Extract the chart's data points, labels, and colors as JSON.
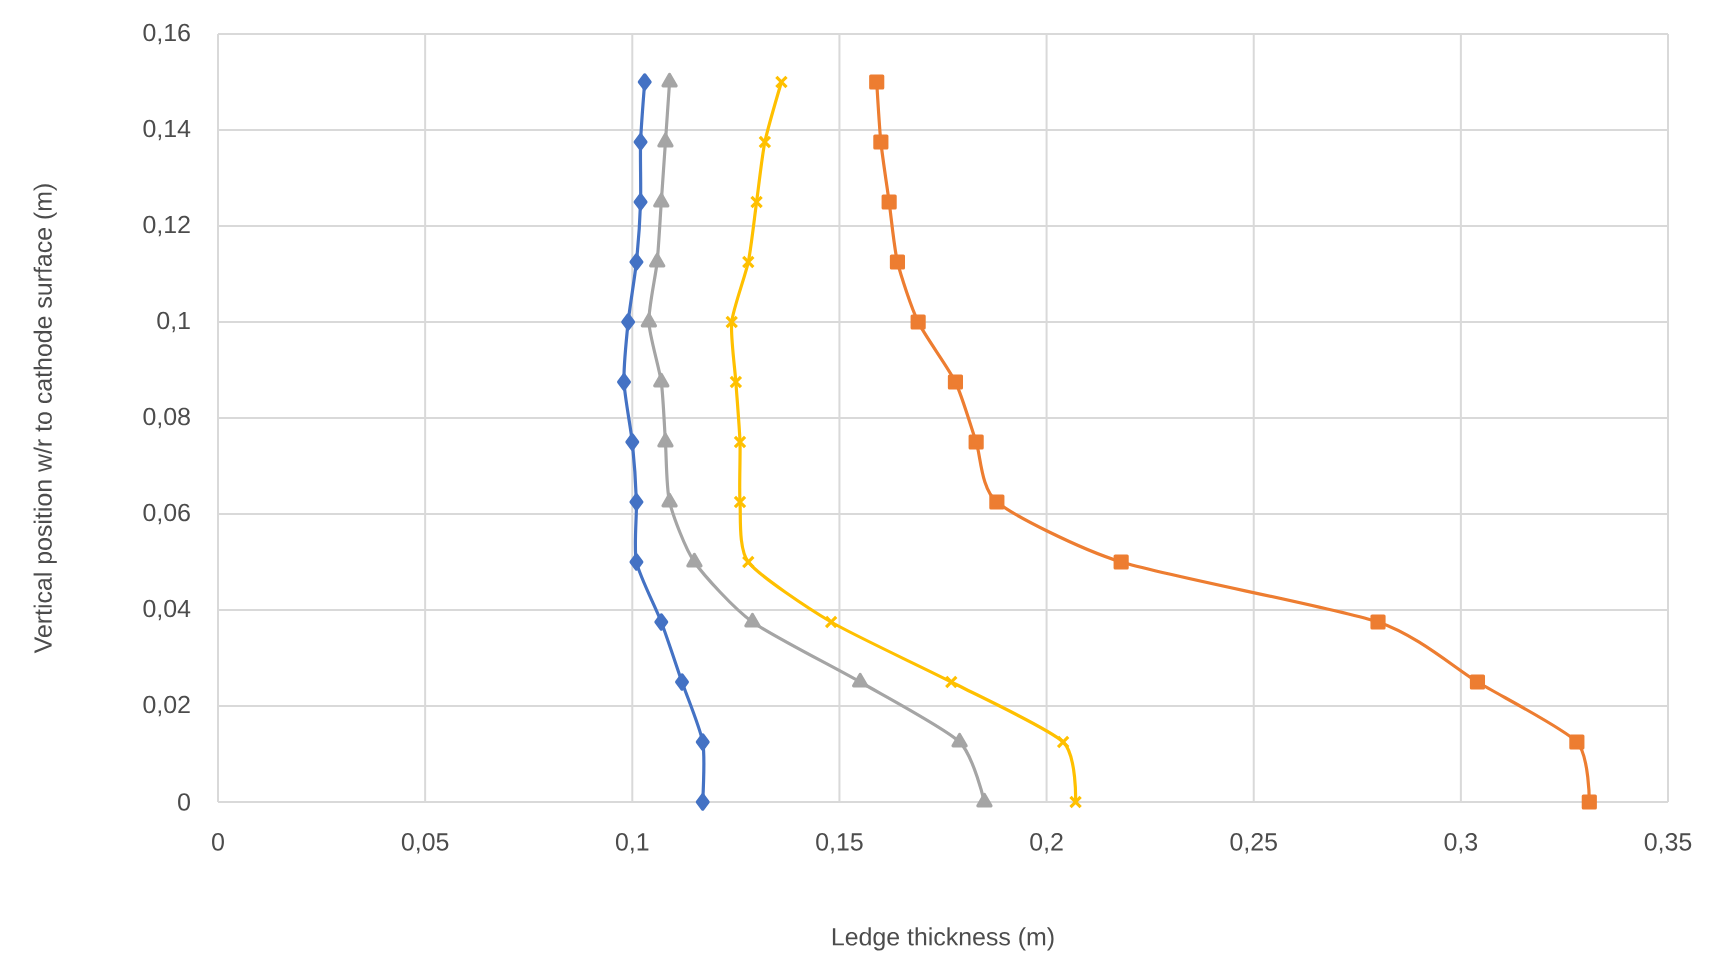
{
  "chart_data": {
    "type": "line",
    "xlabel": "Ledge thickness (m)",
    "ylabel": "Vertical position w/r to cathode surface (m)",
    "xlim": [
      0,
      0.35
    ],
    "ylim": [
      0,
      0.16
    ],
    "xticks": [
      0,
      {
        "value": 0.05,
        "label": "0,05"
      },
      {
        "value": 0.1,
        "label": "0,1"
      },
      {
        "value": 0.15,
        "label": "0,15"
      },
      {
        "value": 0.2,
        "label": "0,2"
      },
      {
        "value": 0.25,
        "label": "0,25"
      },
      {
        "value": 0.3,
        "label": "0,3"
      },
      {
        "value": 0.35,
        "label": "0,35"
      }
    ],
    "yticks": [
      0,
      {
        "value": 0.02,
        "label": "0,02"
      },
      {
        "value": 0.04,
        "label": "0,04"
      },
      {
        "value": 0.06,
        "label": "0,06"
      },
      {
        "value": 0.08,
        "label": "0,08"
      },
      {
        "value": 0.1,
        "label": "0,1"
      },
      {
        "value": 0.12,
        "label": "0,12"
      },
      {
        "value": 0.14,
        "label": "0,14"
      },
      {
        "value": 0.16,
        "label": "0,16"
      }
    ],
    "grid": true,
    "series": [
      {
        "color": "#4472c4",
        "marker": "diamond",
        "x": [
          0.117,
          0.117,
          0.112,
          0.107,
          0.101,
          0.101,
          0.1,
          0.098,
          0.099,
          0.101,
          0.102,
          0.102,
          0.103
        ],
        "values": [
          0,
          0.0125,
          0.025,
          0.0375,
          0.05,
          0.0625,
          0.075,
          0.0875,
          0.1,
          0.1125,
          0.125,
          0.1375,
          0.15
        ]
      },
      {
        "color": "#ed7d31",
        "marker": "square",
        "x": [
          0.331,
          0.328,
          0.304,
          0.28,
          0.218,
          0.188,
          0.183,
          0.178,
          0.169,
          0.164,
          0.162,
          0.16,
          0.159
        ],
        "values": [
          0,
          0.0125,
          0.025,
          0.0375,
          0.05,
          0.0625,
          0.075,
          0.0875,
          0.1,
          0.1125,
          0.125,
          0.1375,
          0.15
        ]
      },
      {
        "color": "#a5a5a5",
        "marker": "triangle",
        "x": [
          0.185,
          0.179,
          0.155,
          0.129,
          0.115,
          0.109,
          0.108,
          0.107,
          0.104,
          0.106,
          0.107,
          0.108,
          0.109
        ],
        "values": [
          0,
          0.0125,
          0.025,
          0.0375,
          0.05,
          0.0625,
          0.075,
          0.0875,
          0.1,
          0.1125,
          0.125,
          0.1375,
          0.15
        ]
      },
      {
        "color": "#ffc000",
        "marker": "cross",
        "x": [
          0.207,
          0.204,
          0.177,
          0.148,
          0.128,
          0.126,
          0.126,
          0.125,
          0.124,
          0.128,
          0.13,
          0.132,
          0.136
        ],
        "values": [
          0,
          0.0125,
          0.025,
          0.0375,
          0.05,
          0.0625,
          0.075,
          0.0875,
          0.1,
          0.1125,
          0.125,
          0.1375,
          0.15
        ]
      }
    ]
  }
}
